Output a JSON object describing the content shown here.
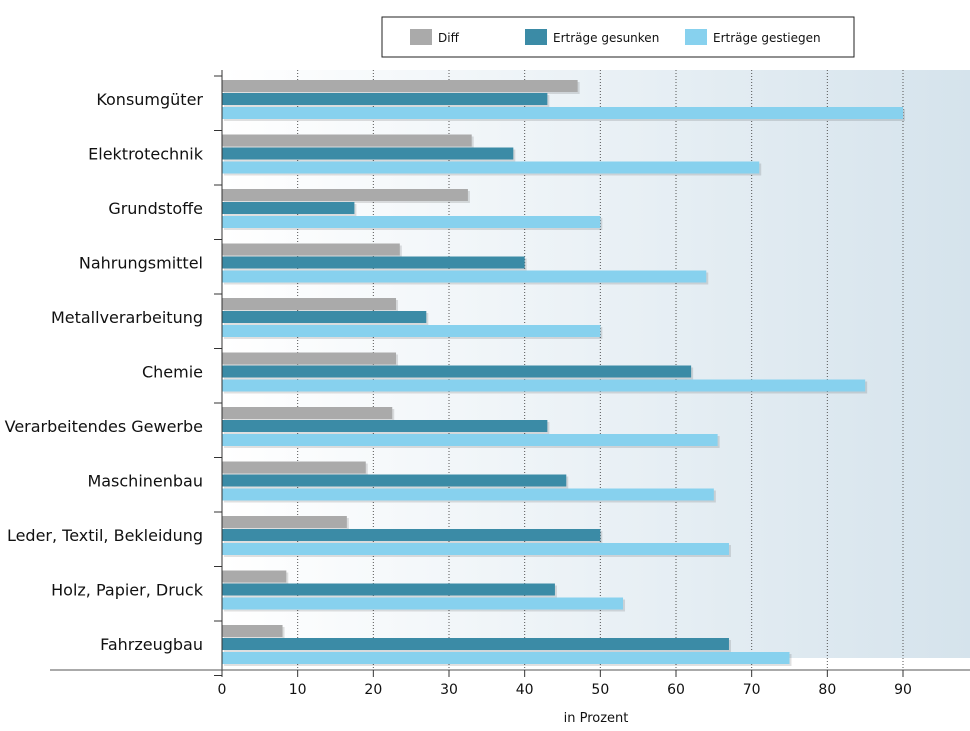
{
  "chart_data": {
    "type": "bar",
    "orientation": "horizontal",
    "categories": [
      "Konsumgüter",
      "Elektrotechnik",
      "Grundstoffe",
      "Nahrungsmittel",
      "Metallverarbeitung",
      "Chemie",
      "Verarbeitendes Gewerbe",
      "Maschinenbau",
      "Leder, Textil, Bekleidung",
      "Holz, Papier, Druck",
      "Fahrzeugbau"
    ],
    "series": [
      {
        "name": "Diff",
        "color": "#aaaaaa",
        "values": [
          47,
          33,
          32.5,
          23.5,
          23,
          23,
          22.5,
          19,
          16.5,
          8.5,
          8
        ]
      },
      {
        "name": "Erträge gesunken",
        "color": "#3b8ba6",
        "values": [
          43,
          38.5,
          17.5,
          40,
          27,
          62,
          43,
          45.5,
          50,
          44,
          67
        ]
      },
      {
        "name": "Erträge gestiegen",
        "color": "#87d1ee",
        "values": [
          90,
          71,
          50,
          64,
          50,
          85,
          65.5,
          65,
          67,
          53,
          75
        ]
      }
    ],
    "xlabel": "in Prozent",
    "xticks": [
      "0",
      "10",
      "20",
      "30",
      "40",
      "50",
      "60",
      "70",
      "80",
      "90"
    ],
    "xlim": [
      0,
      99
    ],
    "grid": "vertical dotted",
    "legend": "top"
  }
}
